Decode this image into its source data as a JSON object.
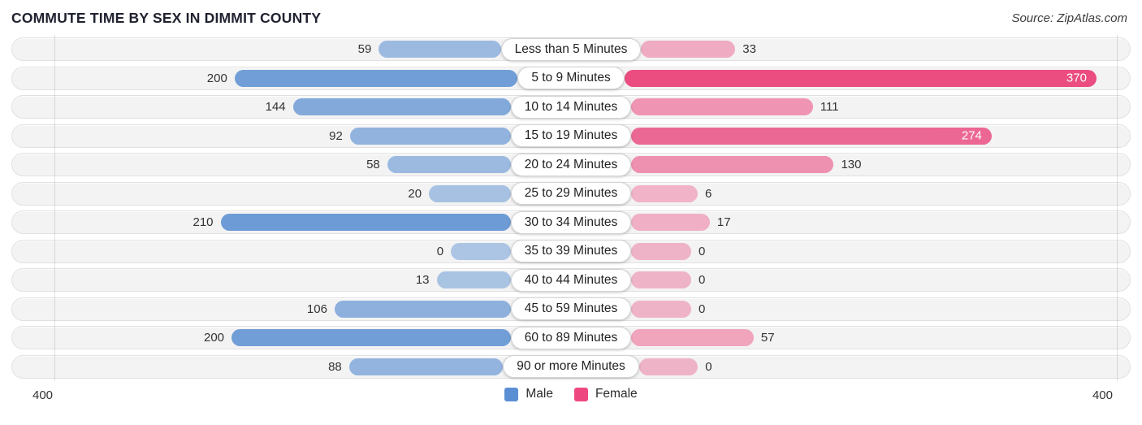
{
  "header": {
    "title": "COMMUTE TIME BY SEX IN DIMMIT COUNTY",
    "source": "Source: ZipAtlas.com"
  },
  "chart_data": {
    "type": "bar",
    "variant": "bidirectional-horizontal",
    "title": "COMMUTE TIME BY SEX IN DIMMIT COUNTY",
    "categories": [
      "Less than 5 Minutes",
      "5 to 9 Minutes",
      "10 to 14 Minutes",
      "15 to 19 Minutes",
      "20 to 24 Minutes",
      "25 to 29 Minutes",
      "30 to 34 Minutes",
      "35 to 39 Minutes",
      "40 to 44 Minutes",
      "45 to 59 Minutes",
      "60 to 89 Minutes",
      "90 or more Minutes"
    ],
    "series": [
      {
        "name": "Male",
        "color": "#3c7bca",
        "values": [
          59,
          200,
          144,
          92,
          58,
          20,
          210,
          0,
          13,
          106,
          200,
          88
        ]
      },
      {
        "name": "Female",
        "color": "#eb4d81",
        "values": [
          33,
          370,
          111,
          274,
          130,
          6,
          17,
          0,
          0,
          0,
          57,
          0
        ]
      }
    ],
    "axis": {
      "max": 400,
      "left_label": "400",
      "right_label": "400"
    },
    "legend": {
      "position": "bottom-center",
      "items": [
        "Male",
        "Female"
      ],
      "colors": {
        "male": "#5b8fd3",
        "female": "#ee4881"
      }
    }
  }
}
